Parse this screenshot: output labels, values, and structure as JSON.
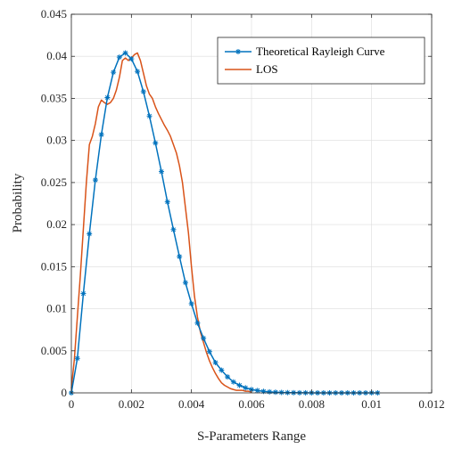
{
  "chart_data": {
    "type": "line",
    "xlabel": "S-Parameters Range",
    "ylabel": "Probability",
    "xlim": [
      0,
      0.012
    ],
    "ylim": [
      0,
      0.045
    ],
    "xticks": [
      "0",
      "0.002",
      "0.004",
      "0.006",
      "0.008",
      "0.01",
      "0.012"
    ],
    "yticks": [
      "0",
      "0.005",
      "0.01",
      "0.015",
      "0.02",
      "0.025",
      "0.03",
      "0.035",
      "0.04",
      "0.045"
    ],
    "grid": true,
    "legend_position": "top-right",
    "series": [
      {
        "name": "Theoretical Rayleigh Curve",
        "color": "#0072BD",
        "marker": "asterisk",
        "x": [
          0,
          0.0002,
          0.0004,
          0.0006,
          0.0008,
          0.001,
          0.0012,
          0.0014,
          0.0016,
          0.0018,
          0.002,
          0.0022,
          0.0024,
          0.0026,
          0.0028,
          0.003,
          0.0032,
          0.0034,
          0.0036,
          0.0038,
          0.004,
          0.0042,
          0.0044,
          0.0046,
          0.0048,
          0.005,
          0.0052,
          0.0054,
          0.0056,
          0.0058,
          0.006,
          0.0062,
          0.0064,
          0.0066,
          0.0068,
          0.007,
          0.0072,
          0.0074,
          0.0076,
          0.0078,
          0.008,
          0.0082,
          0.0084,
          0.0086,
          0.0088,
          0.009,
          0.0092,
          0.0094,
          0.0096,
          0.0098,
          0.01,
          0.0102
        ],
        "y": [
          0,
          0.0041,
          0.0118,
          0.0189,
          0.0253,
          0.0307,
          0.0351,
          0.0381,
          0.0399,
          0.0404,
          0.0397,
          0.0382,
          0.0358,
          0.0329,
          0.0297,
          0.0263,
          0.0227,
          0.0194,
          0.0162,
          0.0131,
          0.0106,
          0.0083,
          0.0065,
          0.0049,
          0.0036,
          0.0027,
          0.0019,
          0.0013,
          0.0009,
          0.0006,
          0.0004,
          0.00028,
          0.00018,
          0.00012,
          8e-05,
          5e-05,
          3e-05,
          2e-05,
          1e-05,
          1e-05,
          0,
          0,
          0,
          0,
          0,
          0,
          0,
          0,
          0,
          0,
          0,
          0
        ]
      },
      {
        "name": "LOS",
        "color": "#D95319",
        "marker": "none",
        "x": [
          0,
          0.0001,
          0.0002,
          0.0003,
          0.0004,
          0.0005,
          0.0006,
          0.0007,
          0.0008,
          0.0009,
          0.001,
          0.0011,
          0.0012,
          0.0013,
          0.0014,
          0.0015,
          0.0016,
          0.0017,
          0.0018,
          0.0019,
          0.002,
          0.0021,
          0.0022,
          0.0023,
          0.0024,
          0.0025,
          0.0026,
          0.0027,
          0.0028,
          0.0029,
          0.003,
          0.0031,
          0.0032,
          0.0033,
          0.0034,
          0.0035,
          0.0036,
          0.0037,
          0.0038,
          0.0039,
          0.004,
          0.0041,
          0.0042,
          0.0043,
          0.0044,
          0.0045,
          0.0046,
          0.0047,
          0.0048,
          0.0049,
          0.005,
          0.0051,
          0.0052,
          0.0053,
          0.0054,
          0.0055,
          0.0056,
          0.0057,
          0.0058,
          0.0059,
          0.006
        ],
        "y": [
          0.0005,
          0.004,
          0.009,
          0.014,
          0.0195,
          0.025,
          0.0295,
          0.0305,
          0.032,
          0.034,
          0.0348,
          0.0345,
          0.0343,
          0.0345,
          0.035,
          0.036,
          0.0375,
          0.0395,
          0.0398,
          0.0395,
          0.0398,
          0.0402,
          0.0404,
          0.0395,
          0.038,
          0.0365,
          0.0355,
          0.035,
          0.034,
          0.0332,
          0.0325,
          0.0318,
          0.0312,
          0.0305,
          0.0295,
          0.0285,
          0.027,
          0.025,
          0.022,
          0.019,
          0.015,
          0.0115,
          0.009,
          0.0072,
          0.006,
          0.0048,
          0.0038,
          0.003,
          0.0023,
          0.0017,
          0.0012,
          0.0009,
          0.0007,
          0.0005,
          0.0004,
          0.0003,
          0.0003,
          0.0003,
          0.0002,
          0.0002,
          0.0001
        ]
      }
    ]
  }
}
